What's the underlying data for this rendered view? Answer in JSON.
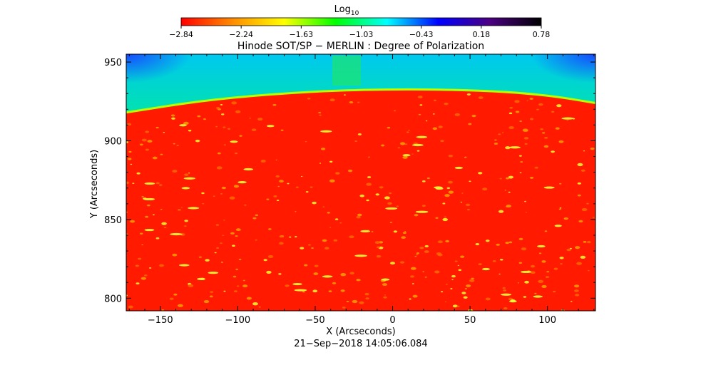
{
  "chart_data": {
    "type": "heatmap",
    "title": "Hinode SOT/SP − MERLIN : Degree of Polarization",
    "xlabel": "X (Arcseconds)",
    "ylabel": "Y (Arcseconds)",
    "timestamp": "21−Sep−2018 14:05:06.084",
    "xlim": [
      -172,
      131
    ],
    "ylim": [
      792,
      955
    ],
    "x_ticks": [
      -150,
      -100,
      -50,
      0,
      50,
      100
    ],
    "x_tick_labels": [
      "−150",
      "−100",
      "−50",
      "0",
      "50",
      "100"
    ],
    "y_ticks": [
      800,
      850,
      900,
      950
    ],
    "y_tick_labels": [
      "800",
      "850",
      "900",
      "950"
    ],
    "colorbar": {
      "label_base": "Log",
      "label_sub": "10",
      "min": -2.84,
      "max": 0.78,
      "tick_labels": [
        "−2.84",
        "−2.24",
        "−1.63",
        "−1.03",
        "−0.43",
        "0.18",
        "0.78"
      ],
      "colors": [
        "#ff0000",
        "#ff8c00",
        "#ffff00",
        "#00ff00",
        "#00ffff",
        "#0000ff",
        "#4b0082",
        "#000000"
      ]
    },
    "limb": {
      "description": "solar limb arc, off-disk above",
      "points": [
        [
          -172,
          918
        ],
        [
          -120,
          926
        ],
        [
          -60,
          931
        ],
        [
          0,
          933
        ],
        [
          60,
          932
        ],
        [
          100,
          929
        ],
        [
          131,
          924
        ]
      ]
    },
    "disk_color": "#ff1a00",
    "offdisk_color": "#00f030"
  }
}
